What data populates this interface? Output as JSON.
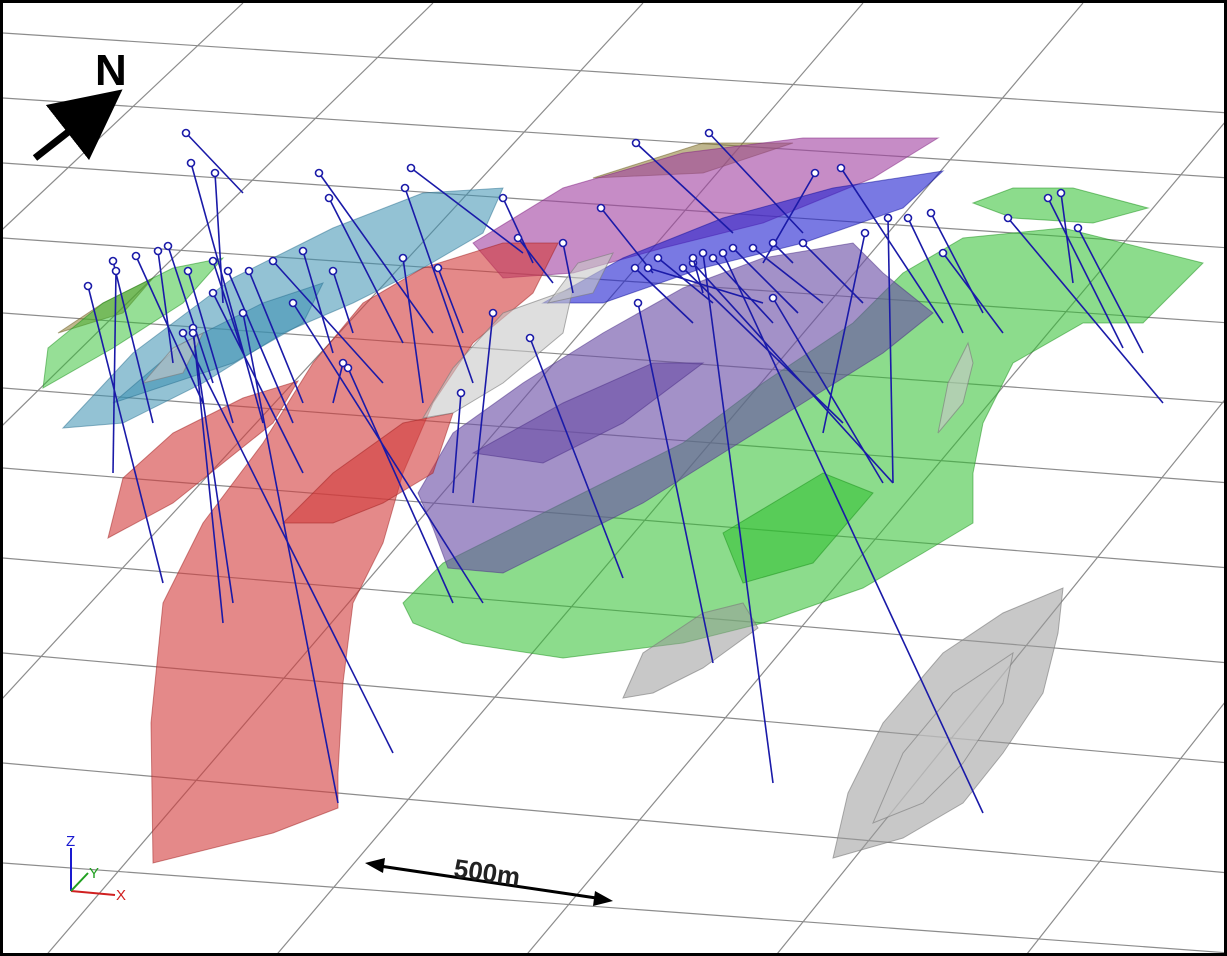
{
  "view": {
    "north_label": "N",
    "scale_label": "500m",
    "axes": {
      "z": "Z",
      "y": "Y",
      "x": "X"
    }
  },
  "colors": {
    "grid": "#8c8c8c",
    "drillhole": "#1a1aa8",
    "red_domain": "#d23a3a",
    "green_domain": "#2ec02e",
    "purple_domain": "#6a4ea6",
    "magenta_domain": "#a040a0",
    "blue_domain": "#2020d0",
    "teal_domain": "#3a8fb0",
    "grey_domain": "#9a9a9a",
    "olive_domain": "#8a7a30"
  },
  "domains": [
    {
      "name": "red-domain",
      "color": "red_domain"
    },
    {
      "name": "green-domain",
      "color": "green_domain"
    },
    {
      "name": "purple-domain",
      "color": "purple_domain"
    },
    {
      "name": "magenta-domain",
      "color": "magenta_domain"
    },
    {
      "name": "blue-domain",
      "color": "blue_domain"
    },
    {
      "name": "teal-domain",
      "color": "teal_domain"
    },
    {
      "name": "grey-domain",
      "color": "grey_domain"
    },
    {
      "name": "olive-domain",
      "color": "olive_domain"
    }
  ]
}
